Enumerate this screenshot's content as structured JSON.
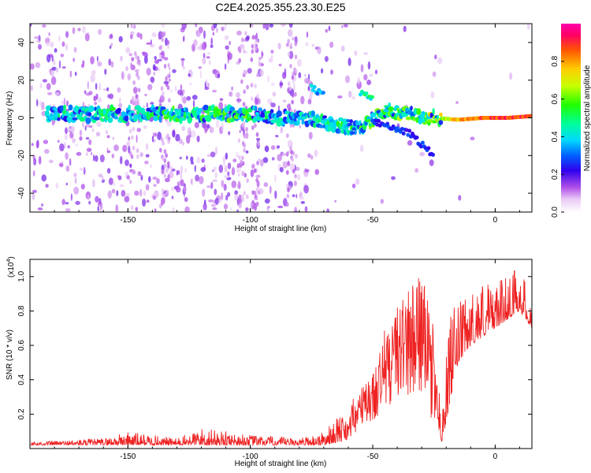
{
  "title": "C2E4.2025.355.23.30.E25",
  "colors": {
    "snr_line": "#ee2222",
    "axis": "#000000",
    "background": "#ffffff"
  },
  "chart_data": [
    {
      "type": "heatmap",
      "name": "spectrogram",
      "xlabel": "Height of straight line (km)",
      "ylabel": "Frequency (Hz)",
      "xlim": [
        -190,
        15
      ],
      "ylim": [
        -50,
        50
      ],
      "xticks": [
        -150,
        -100,
        -50,
        0
      ],
      "xtick_labels": [
        "-150",
        "-100",
        "-50",
        "0"
      ],
      "yticks": [
        -40,
        -20,
        0,
        20,
        40
      ],
      "ytick_labels": [
        "-40",
        "-20",
        "0",
        "20",
        "40"
      ],
      "colorbar": {
        "label": "Normalized spectral amplitude",
        "range": [
          0,
          1
        ],
        "ticks": [
          0.0,
          0.2,
          0.4,
          0.6,
          0.8
        ],
        "tick_labels": [
          "0.0",
          "0.2",
          "0.4",
          "0.6",
          "0.8"
        ]
      },
      "ridge": {
        "description_x": [
          -180,
          -150,
          -120,
          -100,
          -85,
          -75,
          -65,
          -55,
          -45,
          -35,
          -25,
          -15,
          -5,
          5,
          15
        ],
        "freq_hz": [
          2,
          2,
          2,
          2,
          0,
          0,
          -4,
          -5,
          4,
          2,
          0,
          -1,
          0,
          0,
          1
        ],
        "amplitude": [
          0.3,
          0.35,
          0.4,
          0.4,
          0.25,
          0.3,
          0.35,
          0.4,
          0.45,
          0.45,
          0.55,
          0.85,
          0.95,
          0.95,
          0.95
        ]
      },
      "branches": [
        {
          "x": [
            -50,
            -35,
            -25
          ],
          "freq_hz": [
            -2,
            -8,
            -20
          ],
          "amplitude": 0.25
        },
        {
          "x": [
            -75,
            -70
          ],
          "freq_hz": [
            16,
            12
          ],
          "amplitude": 0.35
        },
        {
          "x": [
            -55,
            -50
          ],
          "freq_hz": [
            13,
            10
          ],
          "amplitude": 0.45
        }
      ]
    },
    {
      "type": "line",
      "name": "snr",
      "xlabel": "Height of straight line (km)",
      "ylabel": "SNR (10 * v/v)",
      "y_multiplier": "(x10",
      "y_multiplier_exp": "4",
      "y_multiplier_close": ")",
      "xlim": [
        -190,
        15
      ],
      "ylim": [
        0,
        1.1
      ],
      "xticks": [
        -150,
        -100,
        -50,
        0
      ],
      "xtick_labels": [
        "-150",
        "-100",
        "-50",
        "0"
      ],
      "yticks": [
        0.2,
        0.4,
        0.6,
        0.8,
        1.0
      ],
      "ytick_labels": [
        "0.2",
        "0.4",
        "0.6",
        "0.8",
        "1.0"
      ],
      "envelope": {
        "x": [
          -190,
          -160,
          -150,
          -130,
          -120,
          -100,
          -80,
          -70,
          -60,
          -55,
          -50,
          -45,
          -40,
          -35,
          -30,
          -28,
          -25,
          -22,
          -20,
          -18,
          -15,
          -10,
          -5,
          0,
          5,
          10,
          15
        ],
        "base": [
          0.02,
          0.02,
          0.02,
          0.02,
          0.02,
          0.02,
          0.02,
          0.02,
          0.05,
          0.1,
          0.15,
          0.2,
          0.3,
          0.3,
          0.3,
          0.2,
          0.15,
          0.03,
          0.15,
          0.3,
          0.5,
          0.6,
          0.65,
          0.7,
          0.75,
          0.8,
          0.7
        ],
        "peak": [
          0.04,
          0.06,
          0.1,
          0.06,
          0.12,
          0.08,
          0.06,
          0.1,
          0.25,
          0.35,
          0.45,
          0.7,
          0.85,
          0.95,
          1.05,
          0.9,
          0.7,
          0.2,
          0.55,
          0.8,
          0.85,
          0.9,
          1.0,
          0.95,
          1.02,
          1.08,
          0.85
        ]
      }
    }
  ]
}
